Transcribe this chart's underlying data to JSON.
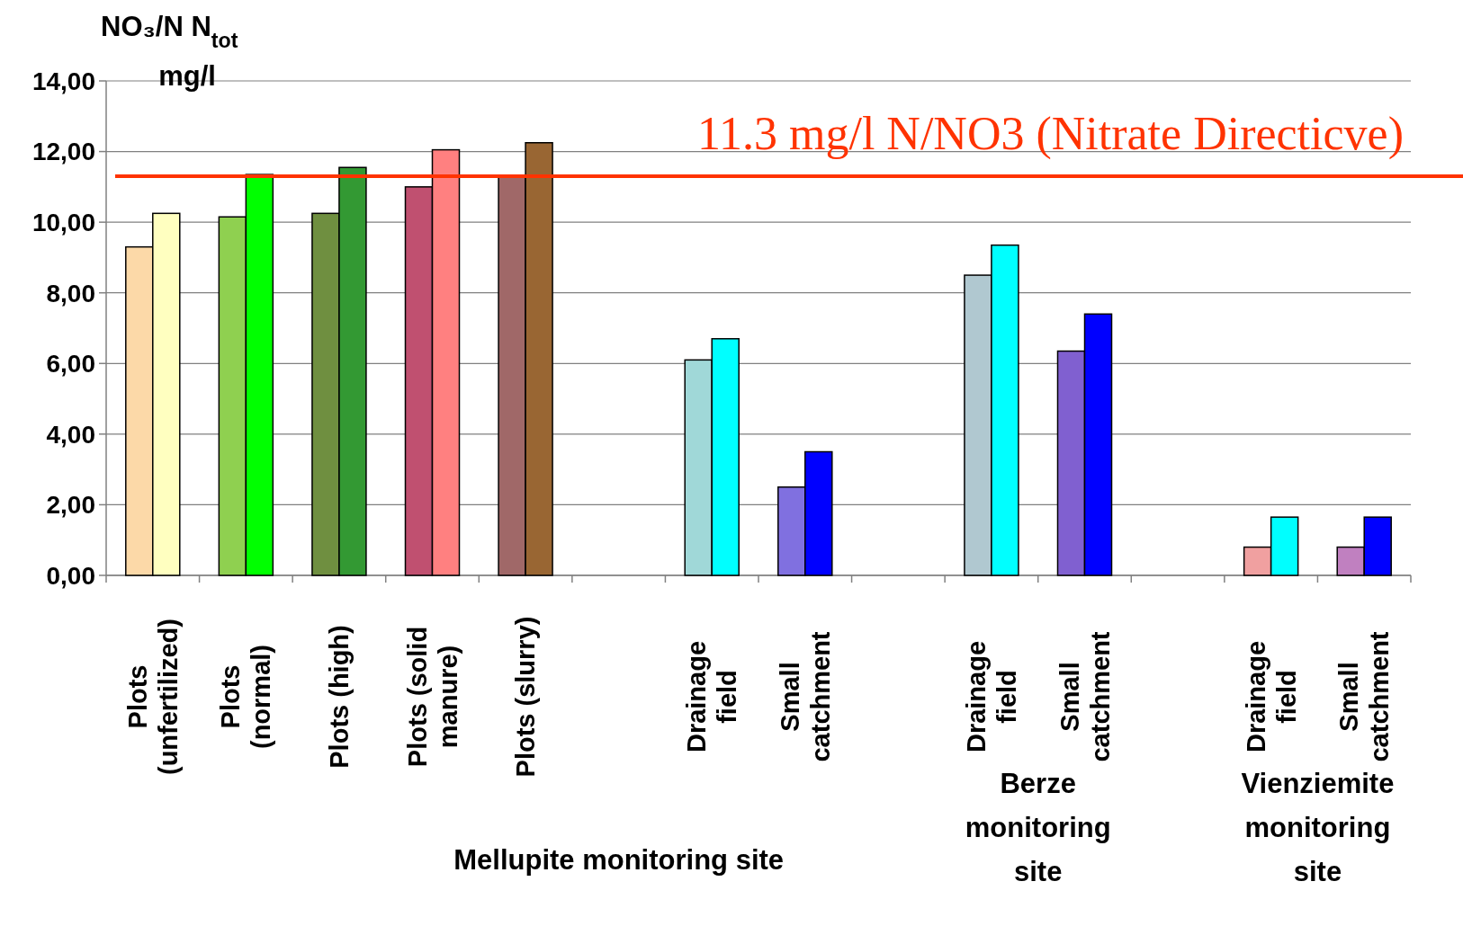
{
  "chart_data": {
    "type": "bar",
    "ylabel": "NO₃/N  N$_{tot}$\nmg/l",
    "categories": [
      "Plots\n(unfertilized)",
      "Plots\n(normal)",
      "Plots (high)",
      "Plots (solid\nmanure)",
      "Plots (slurry)",
      null,
      "Drainage\nfield",
      "Small\ncatchment",
      null,
      "Drainage\nfield",
      "Small\ncatchment",
      null,
      "Drainage\nfield",
      "Small\ncatchment"
    ],
    "series": [
      {
        "colors": [
          "#fcd9a8",
          "#8fd050",
          "#6f8f40",
          "#c05070",
          "#a06868",
          null,
          "#a0d8d8",
          "#8070e0",
          null,
          "#b0c8d0",
          "#8060d0",
          null,
          "#f0a0a0",
          "#c080c0"
        ],
        "values": [
          9.3,
          10.15,
          10.25,
          11.0,
          11.3,
          null,
          6.1,
          2.5,
          null,
          8.5,
          6.35,
          null,
          0.8,
          0.8
        ]
      },
      {
        "colors": [
          "#ffffc0",
          "#00ff00",
          "#339933",
          "#ff8080",
          "#996633",
          null,
          "#00ffff",
          "#0000ff",
          null,
          "#00ffff",
          "#0000ff",
          null,
          "#00ffff",
          "#0000ff"
        ],
        "values": [
          10.25,
          11.35,
          11.55,
          12.05,
          12.25,
          null,
          6.7,
          3.5,
          null,
          9.35,
          7.4,
          null,
          1.65,
          1.65
        ]
      }
    ],
    "ylim": [
      0,
      14
    ],
    "yticks": [
      {
        "value": 0,
        "label": "0,00"
      },
      {
        "value": 2,
        "label": "2,00"
      },
      {
        "value": 4,
        "label": "4,00"
      },
      {
        "value": 6,
        "label": "6,00"
      },
      {
        "value": 8,
        "label": "8,00"
      },
      {
        "value": 10,
        "label": "10,00"
      },
      {
        "value": 12,
        "label": "12,00"
      },
      {
        "value": 14,
        "label": "14,00"
      }
    ],
    "grid": "y",
    "ref_lines": [
      {
        "axis": "y",
        "value": 11.3,
        "label": "11.3 mg/l N/NO3 (Nitrate Directicve)",
        "color": "#ff3300"
      }
    ],
    "annotations": [
      "Mellupite monitoring site",
      "Berze\nmonitoring\nsite",
      "Vienziemite\nmonitoring\nsite"
    ]
  }
}
